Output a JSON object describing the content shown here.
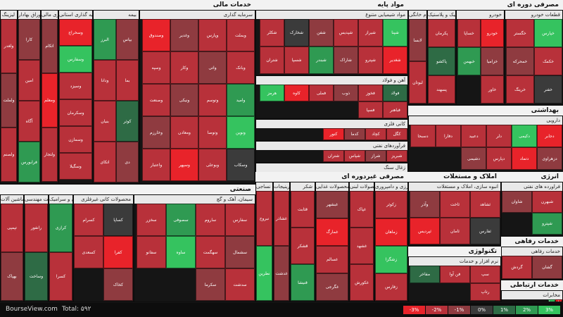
{
  "chart_data": {
    "type": "treemap",
    "color_scale": [
      {
        "label": "-3%",
        "color": "#e8232a"
      },
      {
        "label": "-2%",
        "color": "#b8313a"
      },
      {
        "label": "-1%",
        "color": "#8f3b40"
      },
      {
        "label": "0%",
        "color": "#3b3b3b"
      },
      {
        "label": "1%",
        "color": "#2e6b45"
      },
      {
        "label": "2%",
        "color": "#2f9a52"
      },
      {
        "label": "3%",
        "color": "#35c35f"
      }
    ],
    "sectors": [
      {
        "name": "خدمات مالی",
        "subsectors": [
          {
            "name": "سرمایه گذاری",
            "tiles": [
              "وبملت",
              "وپارس",
              "وغدیر",
              "وصندوق",
              "وبانک",
              "واتی",
              "وکار",
              "وسپه",
              "وامید",
              "وتوسم",
              "ونیکی",
              "وصنعت",
              "ونوین",
              "وتوصا",
              "ومعادن",
              "وخارزم",
              "وسکاب",
              "وبوعلی",
              "وسپهر",
              "واعتبار"
            ]
          },
          {
            "name": "بیمه",
            "tiles": [
              "بپاس",
              "البرز",
              "بما",
              "ودانا",
              "کوثر",
              "بنیان",
              "دی",
              "اتکای"
            ]
          },
          {
            "name": "سرمایه گذاری استانی",
            "tiles": [
              "وسخراج",
              "وسفارس",
              "وسیزد",
              "وسکرمان",
              "وسمازن",
              "وسگیلا"
            ]
          },
          {
            "name": "واسطه گری مالی",
            "tiles": [
              "اتکام",
              "ومعلم",
              "ولتجار"
            ]
          },
          {
            "name": "فعالیتهای مرتبط با اوراق بهادار",
            "tiles": [
              "کارا",
              "امین",
              "آگاه",
              "فرابورس"
            ]
          },
          {
            "name": "لیزینگ",
            "tiles": [
              "ولغدر",
              "ولملت",
              "ولصنم"
            ]
          }
        ]
      },
      {
        "name": "مواد پایه",
        "subsectors": [
          {
            "name": "مواد شیمیایی متنوع",
            "tiles": [
              "شپنا",
              "شیراز",
              "شپدیس",
              "شفن",
              "شخارک",
              "شکلر",
              "شغدیر",
              "شپترو",
              "شاراک",
              "شبندر",
              "شسپا",
              "شتران"
            ]
          },
          {
            "name": "آهن و فولاد",
            "tiles": [
              "فولاد",
              "فخوز",
              "ذوب",
              "فملی",
              "کاوه",
              "هرمز",
              "فباهنر",
              "فسپا"
            ]
          },
          {
            "name": "کانی فلزی",
            "tiles": [
              "کگل",
              "کچاد",
              "کدما",
              "کنور"
            ]
          },
          {
            "name": "فرآوردهای نفتی",
            "tiles": [
              "شبریز",
              "شراز",
              "شپاس",
              "شتران"
            ]
          },
          {
            "name": "زغال سنگ",
            "tiles": [
              "کزغال",
              "کطبس"
            ]
          },
          {
            "name": "چوب",
            "tiles": [
              "چکاپا",
              "چفیبر"
            ]
          }
        ]
      },
      {
        "name": "مصرفی دوره ای",
        "subsectors": [
          {
            "name": "قطعات خودرو",
            "tiles": [
              "خپارس",
              "خگستر",
              "خکمک",
              "خمحرکه",
              "خفنر",
              "خرینگ"
            ]
          },
          {
            "name": "خودرو",
            "tiles": [
              "خودرو",
              "خساپا",
              "خزامیا",
              "خبهمن",
              "خاور"
            ]
          },
          {
            "name": "لاستیک و پلاستیک",
            "tiles": [
              "پکرمان",
              "پاکشو",
              "پسهند"
            ]
          },
          {
            "name": "لوازم خانگی",
            "tiles": [
              "لابسا",
              "لبوتان"
            ]
          }
        ]
      },
      {
        "name": "بهداشتی",
        "subsectors": [
          {
            "name": "دارویی",
            "tiles": [
              "دجابر",
              "دکیمی",
              "دلر",
              "دعبید",
              "دفارا",
              "دسبحا",
              "دزهراوی",
              "دتماد",
              "دپارس",
              "دشیمی"
            ]
          }
        ]
      },
      {
        "name": "صنعتی",
        "subsectors": [
          {
            "name": "سیمان، آهک و گچ",
            "tiles": [
              "سفارس",
              "ساروم",
              "سصوفی",
              "سخزر",
              "سشمال",
              "سهگمت",
              "ساوه",
              "سفانو",
              "سدشت",
              "سکرما"
            ]
          },
          {
            "name": "محصولات کانی غیرفلزی",
            "tiles": [
              "کساپا",
              "کسرام",
              "کفرا",
              "کسعدی",
              "کخاک"
            ]
          },
          {
            "name": "کاشی و سرامیک",
            "tiles": [
              "کرازی",
              "کسرا"
            ]
          },
          {
            "name": "فعالیت مهندسی",
            "tiles": [
              "رانفور",
              "وساخت"
            ]
          },
          {
            "name": "ماشین آلات",
            "tiles": [
              "تپمپی",
              "بهپاک"
            ]
          }
        ]
      },
      {
        "name": "مصرفی غیردوره ای",
        "subsectors": [
          {
            "name": "محصولات کشاورزی و دامپروری",
            "tiles": [
              "زکوثر",
              "زماهان",
              "زشگزا",
              "زفارس"
            ]
          },
          {
            "name": "محصولات لبنی",
            "tiles": [
              "غپاک",
              "غشهد",
              "غکورش"
            ]
          },
          {
            "name": "محصولات غذایی",
            "tiles": [
              "غبشهر",
              "غمارگ",
              "غسالم",
              "غگرجی"
            ]
          },
          {
            "name": "شکر",
            "tiles": [
              "قثابت",
              "قشکر",
              "قنیشا"
            ]
          },
          {
            "name": "شیرینیجات",
            "tiles": [
              "غشاذر",
              "غدشت"
            ]
          },
          {
            "name": "نساجی",
            "tiles": [
              "نبروج",
              "نطرین"
            ]
          }
        ]
      },
      {
        "name": "املاک و مستغلات",
        "subsectors": [
          {
            "name": "انبوه سازی، املاک و مستغلات",
            "tiles": [
              "ثشاهد",
              "ثاخت",
              "وآذر",
              "ثفارس",
              "ثامان",
              "ثپردیس"
            ]
          }
        ]
      },
      {
        "name": "انرژی",
        "subsectors": [
          {
            "name": "فراورده های نفتی",
            "tiles": [
              "شبهرن",
              "شاوان",
              "شپترو"
            ]
          }
        ]
      },
      {
        "name": "تکنولوژی",
        "subsectors": [
          {
            "name": "نرم افزار و خدمات",
            "tiles": [
              "سپ",
              "فن آوا",
              "مفاخر",
              "رتاپ"
            ]
          }
        ]
      },
      {
        "name": "خدمات رفاهی",
        "subsectors": [
          {
            "name": "خدمات رفاهی",
            "tiles": [
              "گشان",
              "گردش"
            ]
          }
        ]
      },
      {
        "name": "خدمات ارتباطی",
        "subsectors": [
          {
            "name": "مخابرات",
            "tiles": [
              "اخابر",
              "همراه"
            ]
          }
        ]
      }
    ]
  },
  "footer": {
    "brand": "BourseView.com",
    "total": "Total: ۵۹۲"
  }
}
